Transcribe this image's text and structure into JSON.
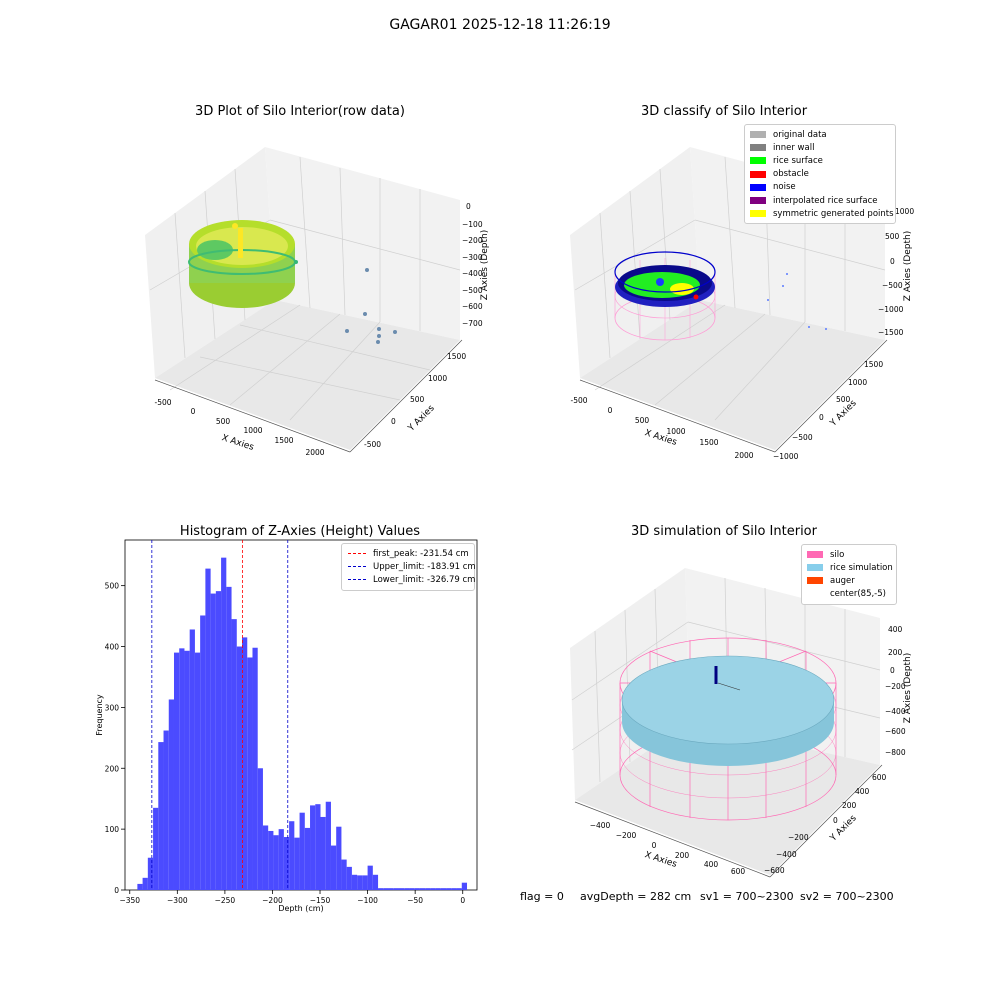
{
  "figure_title": "GAGAR01 2025-12-18 11:26:19",
  "footer": {
    "flag": "flag = 0",
    "avg": "avgDepth = 282 cm",
    "sv1": "sv1 = 700~2300",
    "sv2": "sv2 = 700~2300"
  },
  "chart_data": [
    {
      "type": "scatter",
      "title": "3D Plot of Silo Interior(row data)",
      "xlabel": "X Axies",
      "ylabel": "Y Axies",
      "zlabel": "Z Axies (Depth)",
      "x_ticks": [
        "-500",
        "0",
        "500",
        "1000",
        "1500",
        "2000"
      ],
      "y_ticks": [
        "-500",
        "0",
        "500",
        "1000",
        "1500"
      ],
      "z_ticks": [
        "0",
        "−100",
        "−200",
        "−300",
        "−400",
        "−500",
        "−600",
        "−700"
      ],
      "colormap": "viridis"
    },
    {
      "type": "scatter",
      "title": "3D classify of Silo Interior",
      "xlabel": "X Axies",
      "ylabel": "Y Axies",
      "zlabel": "Z Axies (Depth)",
      "x_ticks": [
        "-500",
        "0",
        "500",
        "1000",
        "1500",
        "2000"
      ],
      "y_ticks": [
        "−1000",
        "−500",
        "0",
        "500",
        "1000",
        "1500"
      ],
      "z_ticks": [
        "1000",
        "500",
        "0",
        "−500",
        "−1000",
        "−1500"
      ],
      "legend": [
        {
          "label": "original data",
          "color": "#b0b0b0"
        },
        {
          "label": "inner wall",
          "color": "#808080"
        },
        {
          "label": "rice surface",
          "color": "#00ff00"
        },
        {
          "label": "obstacle",
          "color": "#ff0000"
        },
        {
          "label": "noise",
          "color": "#0000ff"
        },
        {
          "label": "interpolated rice surface",
          "color": "#800080"
        },
        {
          "label": "symmetric generated points",
          "color": "#ffff00"
        }
      ]
    },
    {
      "type": "bar",
      "title": "Histogram of Z-Axies (Height) Values",
      "xlabel": "Depth (cm)",
      "ylabel": "Frequency",
      "xlim": [
        -355,
        15
      ],
      "ylim": [
        0,
        575
      ],
      "bin_width": 5.5,
      "bar_color": "#4b4bff",
      "x_ticks": [
        -350,
        -300,
        -250,
        -200,
        -150,
        -100,
        -50,
        0
      ],
      "y_ticks": [
        0,
        100,
        200,
        300,
        400,
        500
      ],
      "bins_start": [
        -342,
        -336.5,
        -331,
        -325.5,
        -320,
        -314.5,
        -309,
        -303.5,
        -298,
        -292.5,
        -287,
        -281.5,
        -276,
        -270.5,
        -265,
        -259.5,
        -254,
        -248.5,
        -243,
        -237.5,
        -232,
        -226.5,
        -221,
        -215.5,
        -210,
        -204.5,
        -199,
        -193.5,
        -188,
        -182.5,
        -177,
        -171.5,
        -166,
        -160.5,
        -155,
        -149.5,
        -144,
        -138.5,
        -133,
        -127.5,
        -122,
        -116.5,
        -111,
        -105.5,
        -100,
        -94.5,
        -89,
        -83.5,
        -78,
        -72.5,
        -67,
        -61.5,
        -56,
        -50.5,
        -45,
        -39.5,
        -34,
        -28.5,
        -23,
        -17.5,
        -12,
        -6.5,
        -1
      ],
      "values": [
        10,
        20,
        53,
        135,
        243,
        262,
        313,
        390,
        397,
        393,
        428,
        390,
        451,
        528,
        487,
        491,
        546,
        498,
        445,
        400,
        415,
        382,
        398,
        200,
        106,
        97,
        90,
        100,
        87,
        113,
        86,
        127,
        102,
        139,
        141,
        120,
        145,
        73,
        104,
        50,
        38,
        25,
        24,
        24,
        40,
        25,
        3,
        3,
        3,
        3,
        3,
        3,
        3,
        3,
        3,
        3,
        3,
        3,
        3,
        3,
        3,
        3,
        12
      ],
      "lines": [
        {
          "label": "first_peak: -231.54 cm",
          "x": -231.54,
          "color": "#ff0000"
        },
        {
          "label": "Upper_limit: -183.91 cm",
          "x": -183.91,
          "color": "#0000cc"
        },
        {
          "label": "Lower_limit: -326.79 cm",
          "x": -326.79,
          "color": "#0000cc"
        }
      ]
    },
    {
      "type": "scatter",
      "title": "3D simulation of Silo Interior",
      "xlabel": "X Axies",
      "ylabel": "Y Axies",
      "zlabel": "Z Axies (Depth)",
      "x_ticks": [
        "−400",
        "−200",
        "0",
        "200",
        "400",
        "600"
      ],
      "y_ticks": [
        "−600",
        "−400",
        "−200",
        "0",
        "200",
        "400",
        "600"
      ],
      "z_ticks": [
        "400",
        "200",
        "0",
        "−200",
        "−400",
        "−600",
        "−800"
      ],
      "legend": [
        {
          "label": "silo",
          "color": "#ff69b4"
        },
        {
          "label": "rice simulation",
          "color": "#87ceeb"
        },
        {
          "label": "auger",
          "color": "#ff4500"
        },
        {
          "label": "center(85,-5)",
          "color": "#ffffff"
        }
      ]
    }
  ]
}
